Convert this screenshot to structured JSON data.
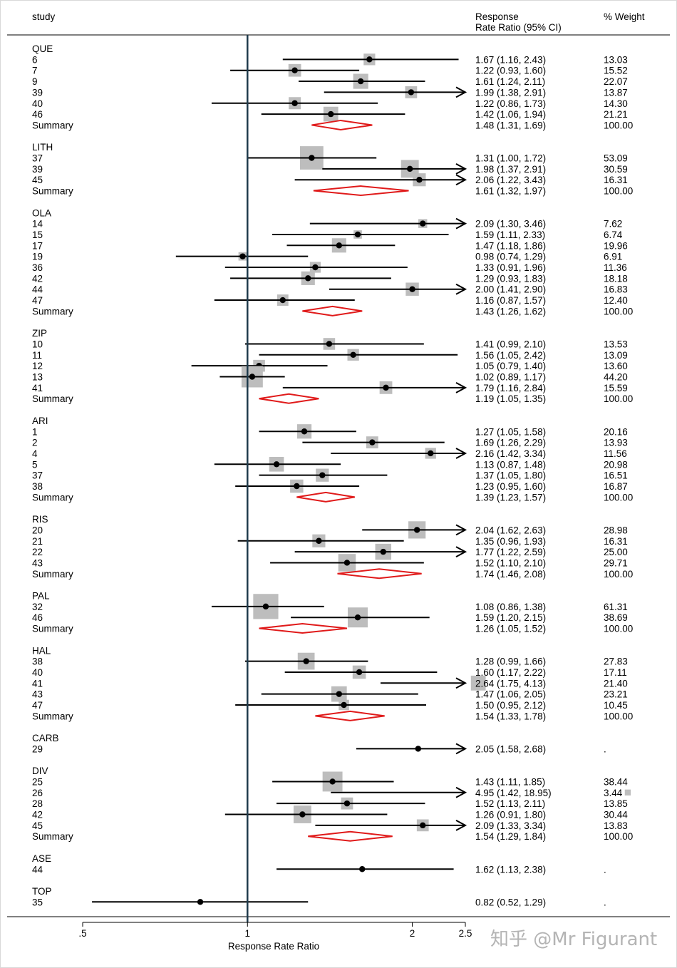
{
  "header": {
    "study": "study",
    "effect_line1": "Response",
    "effect_line2": "Rate Ratio (95% CI)",
    "weight": "% Weight"
  },
  "watermark": "知乎 @Mr Figurant",
  "colors": {
    "marker_box": "#bdbdbd",
    "summary": "#e01a1a",
    "null_line": "#1f3b4d",
    "ci": "#000000"
  },
  "chart_data": {
    "type": "forest",
    "scale": "log",
    "xlabel": "Response Rate Ratio",
    "xlim": [
      0.5,
      2.5
    ],
    "null_value": 1,
    "xticks": [
      {
        "v": 0.5,
        "label": ".5"
      },
      {
        "v": 1,
        "label": "1"
      },
      {
        "v": 2,
        "label": "2"
      },
      {
        "v": 2.5,
        "label": "2.5"
      }
    ],
    "groups": [
      {
        "name": "QUE",
        "studies": [
          {
            "label": "6",
            "est": 1.67,
            "lo": 1.16,
            "hi": 2.43,
            "text": "1.67 (1.16, 2.43)",
            "weight": "13.03",
            "w": 13.03
          },
          {
            "label": "7",
            "est": 1.22,
            "lo": 0.93,
            "hi": 1.6,
            "text": "1.22 (0.93, 1.60)",
            "weight": "15.52",
            "w": 15.52
          },
          {
            "label": "9",
            "est": 1.61,
            "lo": 1.24,
            "hi": 2.11,
            "text": "1.61 (1.24, 2.11)",
            "weight": "22.07",
            "w": 22.07
          },
          {
            "label": "39",
            "est": 1.99,
            "lo": 1.38,
            "hi": 2.91,
            "text": "1.99 (1.38, 2.91)",
            "weight": "13.87",
            "w": 13.87
          },
          {
            "label": "40",
            "est": 1.22,
            "lo": 0.86,
            "hi": 1.73,
            "text": "1.22 (0.86, 1.73)",
            "weight": "14.30",
            "w": 14.3
          },
          {
            "label": "46",
            "est": 1.42,
            "lo": 1.06,
            "hi": 1.94,
            "text": "1.42 (1.06, 1.94)",
            "weight": "21.21",
            "w": 21.21
          }
        ],
        "summary": {
          "label": "Summary",
          "est": 1.48,
          "lo": 1.31,
          "hi": 1.69,
          "text": "1.48 (1.31, 1.69)",
          "weight": "100.00"
        }
      },
      {
        "name": "LITH",
        "studies": [
          {
            "label": "37",
            "est": 1.31,
            "lo": 1.0,
            "hi": 1.72,
            "text": "1.31 (1.00, 1.72)",
            "weight": "53.09",
            "w": 53.09
          },
          {
            "label": "39",
            "est": 1.98,
            "lo": 1.37,
            "hi": 2.91,
            "text": "1.98 (1.37, 2.91)",
            "weight": "30.59",
            "w": 30.59
          },
          {
            "label": "45",
            "est": 2.06,
            "lo": 1.22,
            "hi": 3.43,
            "text": "2.06 (1.22, 3.43)",
            "weight": "16.31",
            "w": 16.31
          }
        ],
        "summary": {
          "label": "Summary",
          "est": 1.61,
          "lo": 1.32,
          "hi": 1.97,
          "text": "1.61 (1.32, 1.97)",
          "weight": "100.00"
        }
      },
      {
        "name": "OLA",
        "studies": [
          {
            "label": "14",
            "est": 2.09,
            "lo": 1.3,
            "hi": 3.46,
            "text": "2.09 (1.30, 3.46)",
            "weight": "7.62",
            "w": 7.62
          },
          {
            "label": "15",
            "est": 1.59,
            "lo": 1.11,
            "hi": 2.33,
            "text": "1.59 (1.11, 2.33)",
            "weight": "6.74",
            "w": 6.74
          },
          {
            "label": "17",
            "est": 1.47,
            "lo": 1.18,
            "hi": 1.86,
            "text": "1.47 (1.18, 1.86)",
            "weight": "19.96",
            "w": 19.96
          },
          {
            "label": "19",
            "est": 0.98,
            "lo": 0.74,
            "hi": 1.29,
            "text": "0.98 (0.74, 1.29)",
            "weight": "6.91",
            "w": 6.91
          },
          {
            "label": "36",
            "est": 1.33,
            "lo": 0.91,
            "hi": 1.96,
            "text": "1.33 (0.91, 1.96)",
            "weight": "11.36",
            "w": 11.36
          },
          {
            "label": "42",
            "est": 1.29,
            "lo": 0.93,
            "hi": 1.83,
            "text": "1.29 (0.93, 1.83)",
            "weight": "18.18",
            "w": 18.18
          },
          {
            "label": "44",
            "est": 2.0,
            "lo": 1.41,
            "hi": 2.9,
            "text": "2.00 (1.41, 2.90)",
            "weight": "16.83",
            "w": 16.83
          },
          {
            "label": "47",
            "est": 1.16,
            "lo": 0.87,
            "hi": 1.57,
            "text": "1.16 (0.87, 1.57)",
            "weight": "12.40",
            "w": 12.4
          }
        ],
        "summary": {
          "label": "Summary",
          "est": 1.43,
          "lo": 1.26,
          "hi": 1.62,
          "text": "1.43 (1.26, 1.62)",
          "weight": "100.00"
        }
      },
      {
        "name": "ZIP",
        "studies": [
          {
            "label": "10",
            "est": 1.41,
            "lo": 0.99,
            "hi": 2.1,
            "text": "1.41 (0.99, 2.10)",
            "weight": "13.53",
            "w": 13.53
          },
          {
            "label": "11",
            "est": 1.56,
            "lo": 1.05,
            "hi": 2.42,
            "text": "1.56 (1.05, 2.42)",
            "weight": "13.09",
            "w": 13.09
          },
          {
            "label": "12",
            "est": 1.05,
            "lo": 0.79,
            "hi": 1.4,
            "text": "1.05 (0.79, 1.40)",
            "weight": "13.60",
            "w": 13.6
          },
          {
            "label": "13",
            "est": 1.02,
            "lo": 0.89,
            "hi": 1.17,
            "text": "1.02 (0.89, 1.17)",
            "weight": "44.20",
            "w": 44.2
          },
          {
            "label": "41",
            "est": 1.79,
            "lo": 1.16,
            "hi": 2.84,
            "text": "1.79 (1.16, 2.84)",
            "weight": "15.59",
            "w": 15.59
          }
        ],
        "summary": {
          "label": "Summary",
          "est": 1.19,
          "lo": 1.05,
          "hi": 1.35,
          "text": "1.19 (1.05, 1.35)",
          "weight": "100.00"
        }
      },
      {
        "name": "ARI",
        "studies": [
          {
            "label": "1",
            "est": 1.27,
            "lo": 1.05,
            "hi": 1.58,
            "text": "1.27 (1.05, 1.58)",
            "weight": "20.16",
            "w": 20.16
          },
          {
            "label": "2",
            "est": 1.69,
            "lo": 1.26,
            "hi": 2.29,
            "text": "1.69 (1.26, 2.29)",
            "weight": "13.93",
            "w": 13.93
          },
          {
            "label": "4",
            "est": 2.16,
            "lo": 1.42,
            "hi": 3.34,
            "text": "2.16 (1.42, 3.34)",
            "weight": "11.56",
            "w": 11.56
          },
          {
            "label": "5",
            "est": 1.13,
            "lo": 0.87,
            "hi": 1.48,
            "text": "1.13 (0.87, 1.48)",
            "weight": "20.98",
            "w": 20.98
          },
          {
            "label": "37",
            "est": 1.37,
            "lo": 1.05,
            "hi": 1.8,
            "text": "1.37 (1.05, 1.80)",
            "weight": "16.51",
            "w": 16.51
          },
          {
            "label": "38",
            "est": 1.23,
            "lo": 0.95,
            "hi": 1.6,
            "text": "1.23 (0.95, 1.60)",
            "weight": "16.87",
            "w": 16.87
          }
        ],
        "summary": {
          "label": "Summary",
          "est": 1.39,
          "lo": 1.23,
          "hi": 1.57,
          "text": "1.39 (1.23, 1.57)",
          "weight": "100.00"
        }
      },
      {
        "name": "RIS",
        "studies": [
          {
            "label": "20",
            "est": 2.04,
            "lo": 1.62,
            "hi": 2.63,
            "text": "2.04 (1.62, 2.63)",
            "weight": "28.98",
            "w": 28.98
          },
          {
            "label": "21",
            "est": 1.35,
            "lo": 0.96,
            "hi": 1.93,
            "text": "1.35 (0.96, 1.93)",
            "weight": "16.31",
            "w": 16.31
          },
          {
            "label": "22",
            "est": 1.77,
            "lo": 1.22,
            "hi": 2.59,
            "text": "1.77 (1.22, 2.59)",
            "weight": "25.00",
            "w": 25.0
          },
          {
            "label": "43",
            "est": 1.52,
            "lo": 1.1,
            "hi": 2.1,
            "text": "1.52 (1.10, 2.10)",
            "weight": "29.71",
            "w": 29.71
          }
        ],
        "summary": {
          "label": "Summary",
          "est": 1.74,
          "lo": 1.46,
          "hi": 2.08,
          "text": "1.74 (1.46, 2.08)",
          "weight": "100.00"
        }
      },
      {
        "name": "PAL",
        "studies": [
          {
            "label": "32",
            "est": 1.08,
            "lo": 0.86,
            "hi": 1.38,
            "text": "1.08 (0.86, 1.38)",
            "weight": "61.31",
            "w": 61.31
          },
          {
            "label": "46",
            "est": 1.59,
            "lo": 1.2,
            "hi": 2.15,
            "text": "1.59 (1.20, 2.15)",
            "weight": "38.69",
            "w": 38.69
          }
        ],
        "summary": {
          "label": "Summary",
          "est": 1.26,
          "lo": 1.05,
          "hi": 1.52,
          "text": "1.26 (1.05, 1.52)",
          "weight": "100.00"
        }
      },
      {
        "name": "HAL",
        "studies": [
          {
            "label": "38",
            "est": 1.28,
            "lo": 0.99,
            "hi": 1.66,
            "text": "1.28 (0.99, 1.66)",
            "weight": "27.83",
            "w": 27.83
          },
          {
            "label": "40",
            "est": 1.6,
            "lo": 1.17,
            "hi": 2.22,
            "text": "1.60 (1.17, 2.22)",
            "weight": "17.11",
            "w": 17.11
          },
          {
            "label": "41",
            "est": 2.64,
            "lo": 1.75,
            "hi": 4.13,
            "text": "2.64 (1.75, 4.13)",
            "weight": "21.40",
            "w": 21.4
          },
          {
            "label": "43",
            "est": 1.47,
            "lo": 1.06,
            "hi": 2.05,
            "text": "1.47 (1.06, 2.05)",
            "weight": "23.21",
            "w": 23.21
          },
          {
            "label": "47",
            "est": 1.5,
            "lo": 0.95,
            "hi": 2.12,
            "text": "1.50 (0.95, 2.12)",
            "weight": "10.45",
            "w": 10.45
          }
        ],
        "summary": {
          "label": "Summary",
          "est": 1.54,
          "lo": 1.33,
          "hi": 1.78,
          "text": "1.54 (1.33, 1.78)",
          "weight": "100.00"
        }
      },
      {
        "name": "CARB",
        "studies": [
          {
            "label": "29",
            "est": 2.05,
            "lo": 1.58,
            "hi": 2.68,
            "text": "2.05 (1.58, 2.68)",
            "weight": ".",
            "w": 0
          }
        ],
        "summary": null
      },
      {
        "name": "DIV",
        "studies": [
          {
            "label": "25",
            "est": 1.43,
            "lo": 1.11,
            "hi": 1.85,
            "text": "1.43 (1.11, 1.85)",
            "weight": "38.44",
            "w": 38.44
          },
          {
            "label": "26",
            "est": 4.95,
            "lo": 1.42,
            "hi": 18.95,
            "text": "4.95 (1.42, 18.95)",
            "weight": "3.44",
            "w": 3.44
          },
          {
            "label": "28",
            "est": 1.52,
            "lo": 1.13,
            "hi": 2.11,
            "text": "1.52 (1.13, 2.11)",
            "weight": "13.85",
            "w": 13.85
          },
          {
            "label": "42",
            "est": 1.26,
            "lo": 0.91,
            "hi": 1.8,
            "text": "1.26 (0.91, 1.80)",
            "weight": "30.44",
            "w": 30.44
          },
          {
            "label": "45",
            "est": 2.09,
            "lo": 1.33,
            "hi": 3.34,
            "text": "2.09 (1.33, 3.34)",
            "weight": "13.83",
            "w": 13.83
          }
        ],
        "summary": {
          "label": "Summary",
          "est": 1.54,
          "lo": 1.29,
          "hi": 1.84,
          "text": "1.54 (1.29, 1.84)",
          "weight": "100.00"
        }
      },
      {
        "name": "ASE",
        "studies": [
          {
            "label": "44",
            "est": 1.62,
            "lo": 1.13,
            "hi": 2.38,
            "text": "1.62 (1.13, 2.38)",
            "weight": ".",
            "w": 0
          }
        ],
        "summary": null
      },
      {
        "name": "TOP",
        "studies": [
          {
            "label": "35",
            "est": 0.82,
            "lo": 0.52,
            "hi": 1.29,
            "text": "0.82 (0.52, 1.29)",
            "weight": ".",
            "w": 0
          }
        ],
        "summary": null
      }
    ]
  }
}
